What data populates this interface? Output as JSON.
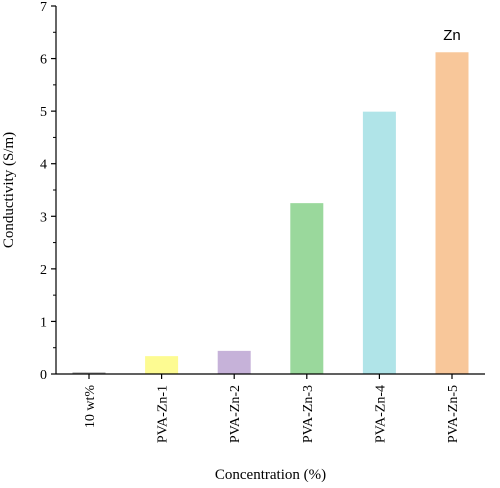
{
  "chart_data": {
    "type": "bar",
    "categories": [
      "10 wt%",
      "PVA-Zn-1",
      "PVA-Zn-2",
      "PVA-Zn-3",
      "PVA-Zn-4",
      "PVA-Zn-5"
    ],
    "values": [
      0.03,
      0.34,
      0.44,
      3.25,
      4.99,
      6.12
    ],
    "colors": [
      "#9a9a9a",
      "#fdfb92",
      "#c6b2d9",
      "#9ad89c",
      "#b0e4e8",
      "#f8c79a"
    ],
    "title": "",
    "xlabel": "Concentration (%)",
    "ylabel": "Conductivity (S/m)",
    "ylim": [
      0,
      7
    ],
    "yticks": [
      0,
      1,
      2,
      3,
      4,
      5,
      6,
      7
    ],
    "grid": false,
    "annotations": [
      {
        "text": "Zn",
        "category": "PVA-Zn-5",
        "y": 6.45
      }
    ]
  }
}
